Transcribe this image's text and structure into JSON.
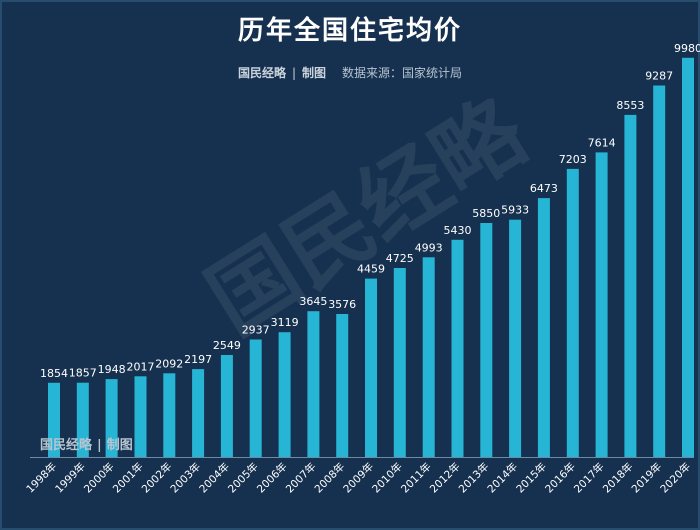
{
  "chart_data": {
    "type": "bar",
    "title": "历年全国住宅均价",
    "subtitle_brand": "国民经略",
    "subtitle_maker": "制图",
    "source": "数据来源：国家统计局",
    "watermark": "国民经略",
    "categories": [
      "1998年",
      "1999年",
      "2000年",
      "2001年",
      "2002年",
      "2003年",
      "2004年",
      "2005年",
      "2006年",
      "2007年",
      "2008年",
      "2009年",
      "2010年",
      "2011年",
      "2012年",
      "2013年",
      "2014年",
      "2015年",
      "2016年",
      "2017年",
      "2018年",
      "2019年",
      "2020年"
    ],
    "values": [
      1854,
      1857,
      1948,
      2017,
      2092,
      2197,
      2549,
      2937,
      3119,
      3645,
      3576,
      4459,
      4725,
      4993,
      5430,
      5850,
      5933,
      6473,
      7203,
      7614,
      8553,
      9287,
      9980
    ],
    "ylim": [
      0,
      10000
    ],
    "grid": false,
    "xlabel": "",
    "ylabel": "",
    "colors": {
      "bar": "#27b5d6",
      "background": "#16314f",
      "text": "#ffffff"
    }
  }
}
